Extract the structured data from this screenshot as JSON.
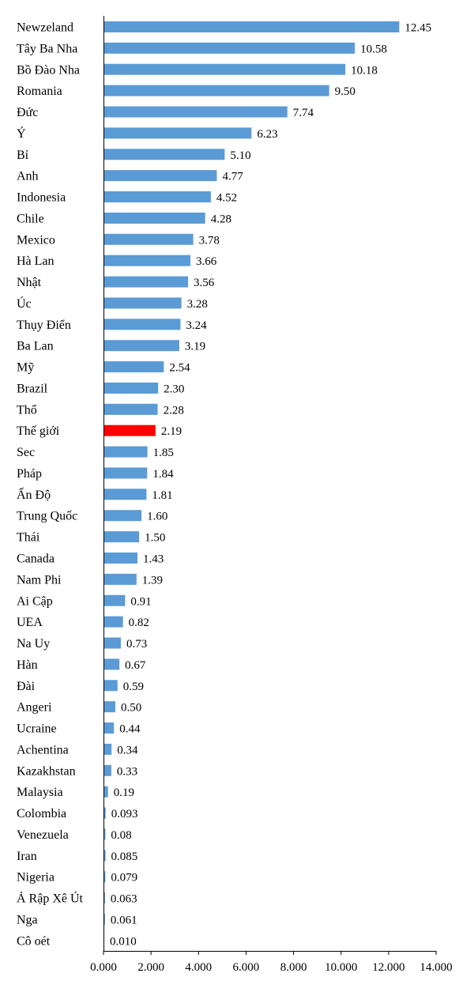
{
  "chart_data": {
    "type": "bar",
    "orientation": "horizontal",
    "title": "",
    "xlabel": "",
    "ylabel": "",
    "xlim": [
      0,
      14
    ],
    "grid": false,
    "legend": "none",
    "bar_color": "#5b9bd5",
    "highlight_color": "#ff0000",
    "highlight_category": "Thế giới",
    "x_ticks": [
      "0.000",
      "2.000",
      "4.000",
      "6.000",
      "8.000",
      "10.000",
      "12.000",
      "14.000"
    ],
    "categories": [
      "Newzeland",
      "Tây Ba Nha",
      "Bồ Đào Nha",
      "Romania",
      "Đức",
      "Ý",
      "Bỉ",
      "Anh",
      "Indonesia",
      "Chile",
      "Mexico",
      "Hà Lan",
      "Nhật",
      "Úc",
      "Thụy Điển",
      "Ba Lan",
      "Mỹ",
      "Brazil",
      "Thổ",
      "Thế giới",
      "Sec",
      "Pháp",
      "Ấn Độ",
      "Trung Quốc",
      "Thái",
      "Canada",
      "Nam Phi",
      "Ai Cập",
      "UEA",
      "Na Uy",
      "Hàn",
      "Đài",
      "Angeri",
      "Ucraine",
      "Achentina",
      "Kazakhstan",
      "Malaysia",
      "Colombia",
      "Venezuela",
      "Iran",
      "Nigeria",
      "Ả Rập Xê Út",
      "Nga",
      "Cô oét"
    ],
    "values": [
      12.45,
      10.58,
      10.18,
      9.5,
      7.74,
      6.23,
      5.1,
      4.77,
      4.52,
      4.28,
      3.78,
      3.66,
      3.56,
      3.28,
      3.24,
      3.19,
      2.54,
      2.3,
      2.28,
      2.19,
      1.85,
      1.84,
      1.81,
      1.6,
      1.5,
      1.43,
      1.39,
      0.91,
      0.82,
      0.73,
      0.67,
      0.59,
      0.5,
      0.44,
      0.34,
      0.33,
      0.19,
      0.093,
      0.08,
      0.085,
      0.079,
      0.063,
      0.061,
      0.01
    ],
    "value_labels": [
      "12.45",
      "10.58",
      "10.18",
      "9.50",
      "7.74",
      "6.23",
      "5.10",
      "4.77",
      "4.52",
      "4.28",
      "3.78",
      "3.66",
      "3.56",
      "3.28",
      "3.24",
      "3.19",
      "2.54",
      "2.30",
      "2.28",
      "2.19",
      "1.85",
      "1.84",
      "1.81",
      "1.60",
      "1.50",
      "1.43",
      "1.39",
      "0.91",
      "0.82",
      "0.73",
      "0.67",
      "0.59",
      "0.50",
      "0.44",
      "0.34",
      "0.33",
      "0.19",
      "0.093",
      "0.08",
      "0.085",
      "0.079",
      "0.063",
      "0.061",
      "0.010"
    ]
  }
}
